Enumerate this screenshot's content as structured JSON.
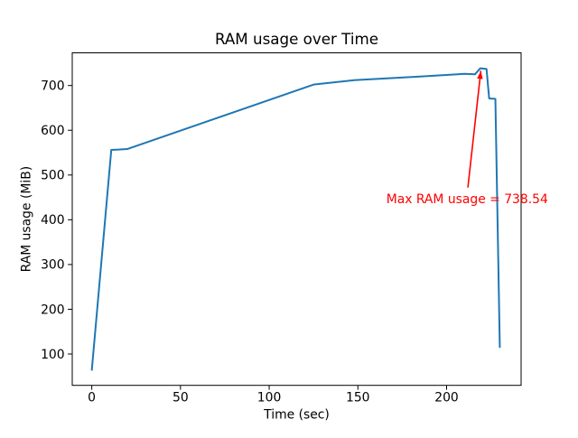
{
  "chart_data": {
    "type": "line",
    "title": "RAM usage over Time",
    "xlabel": "Time (sec)",
    "ylabel": "RAM usage (MiB)",
    "x": [
      0,
      11,
      20,
      125,
      148,
      185,
      210,
      216,
      219,
      222.5,
      224,
      227.5,
      230
    ],
    "y": [
      63,
      556,
      558,
      702,
      712,
      720,
      726,
      725,
      738.54,
      737,
      671,
      670,
      114
    ],
    "max_value": 738.54,
    "xlim": [
      -11,
      242
    ],
    "ylim": [
      30,
      773
    ],
    "xticks": [
      0,
      50,
      100,
      150,
      200
    ],
    "yticks": [
      100,
      200,
      300,
      400,
      500,
      600,
      700
    ],
    "grid": false,
    "legend": "none",
    "line_color": "#1f77b4",
    "annotation": {
      "text": "Max RAM usage = 738.54",
      "color": "#ff0000",
      "arrow_tip_xy": [
        219.3,
        733
      ],
      "arrow_tail_xy": [
        212,
        472
      ],
      "text_xy": [
        166,
        437.5
      ]
    }
  }
}
